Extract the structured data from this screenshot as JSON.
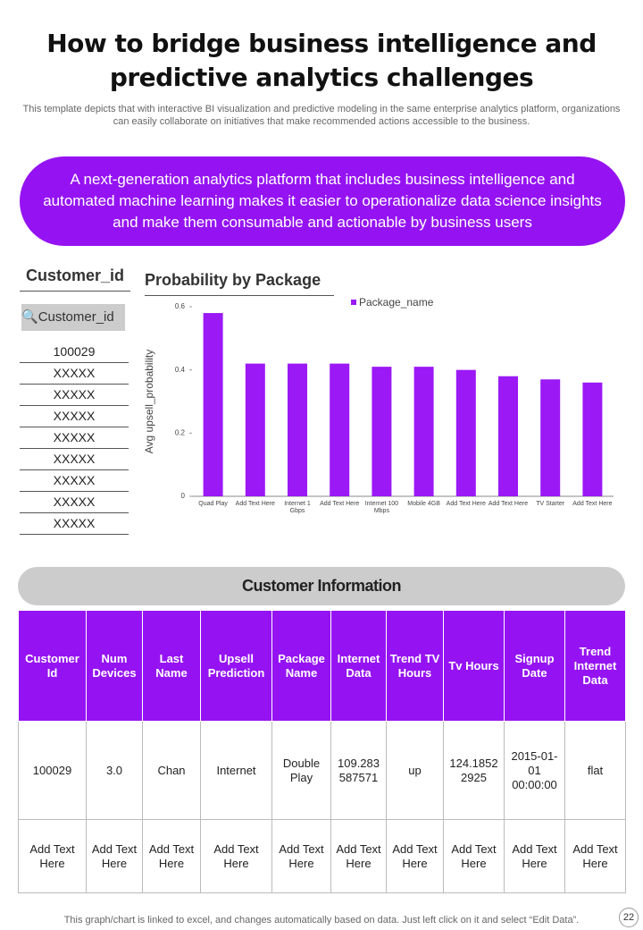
{
  "header": {
    "title": "How to bridge business intelligence and predictive analytics challenges",
    "subtitle": "This template depicts that with interactive BI visualization and predictive modeling in the same enterprise analytics platform, organizations can easily collaborate on initiatives that make recommended actions accessible to the business."
  },
  "banner": "A next-generation analytics platform that includes business intelligence and automated machine learning makes it easier to operationalize data science insights and make them consumable and actionable by business users",
  "filter": {
    "title": "Customer_id",
    "search": "Customer_id",
    "items": [
      "100029",
      "XXXXX",
      "XXXXX",
      "XXXXX",
      "XXXXX",
      "XXXXX",
      "XXXXX",
      "XXXXX",
      "XXXXX"
    ]
  },
  "chart_data": {
    "type": "bar",
    "title": "Probability by Package",
    "y_label": "Avg upsell_probability",
    "categories": [
      "Quad Play",
      "Add Text Here",
      "Internet 1 Gbps",
      "Add Text Here",
      "Internet 100 Mbps",
      "Mobile 4GB",
      "Add Text Here",
      "Add Text Here",
      "TV Starter",
      "Add Text Here"
    ],
    "series": [
      {
        "name": "Package_name",
        "color": "#9b19f5",
        "values": [
          0.58,
          0.42,
          0.42,
          0.42,
          0.41,
          0.41,
          0.4,
          0.38,
          0.37,
          0.36
        ]
      }
    ],
    "ylim": [
      0,
      0.6
    ],
    "yticks": [
      0,
      0.2,
      0.4,
      0.6
    ],
    "legend": "top"
  },
  "table": {
    "title": "Customer Information",
    "header": [
      "Customer Id",
      "Num Devices",
      "Last Name",
      "Upsell Prediction",
      "Package Name",
      "Internet Data",
      "Trend TV Hours",
      "Tv Hours",
      "Signup Date",
      "Trend Internet Data"
    ],
    "rows": [
      [
        "100029",
        "3.0",
        "Chan",
        "Internet",
        "Double Play",
        "109.283 587571",
        "up",
        "124.1852 2925",
        "2015-01-01 00:00:00",
        "flat"
      ],
      [
        "Add Text Here",
        "Add Text Here",
        "Add Text Here",
        "Add Text Here",
        "Add Text Here",
        "Add Text Here",
        "Add Text Here",
        "Add Text Here",
        "Add Text Here",
        "Add Text Here"
      ]
    ]
  },
  "footer": {
    "note": "This graph/chart is linked to excel, and changes automatically based on data. Just left click on it and select “Edit Data”.",
    "page": "22"
  }
}
